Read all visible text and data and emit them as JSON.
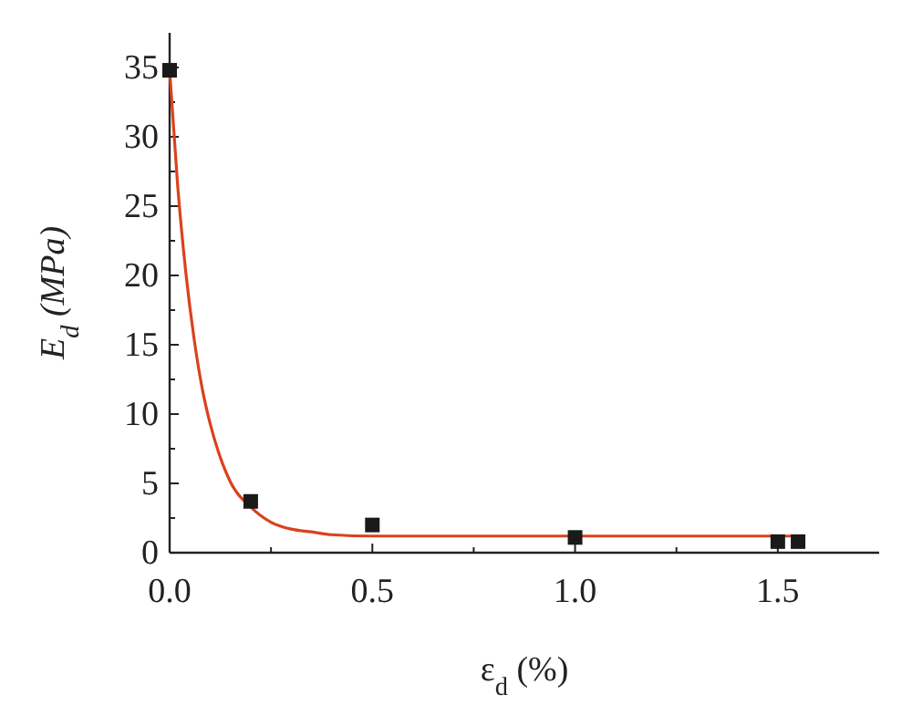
{
  "chart_data": {
    "type": "scatter",
    "xlabel": "ε$_{d}$ (%)",
    "ylabel": "E$_{d}$ (MPa)",
    "xlim": [
      0,
      1.75
    ],
    "xticks": [
      {
        "value": 0,
        "label": "0.0"
      },
      {
        "value": 0.25,
        "label": null
      },
      {
        "value": 0.5,
        "label": "0.5"
      },
      {
        "value": 0.75,
        "label": null
      },
      {
        "value": 1,
        "label": "1.0"
      },
      {
        "value": 1.25,
        "label": null
      },
      {
        "value": 1.5,
        "label": "1.5"
      }
    ],
    "ylim": [
      0,
      37.5
    ],
    "yticks": [
      0,
      {
        "value": 2.5,
        "label": null
      },
      5,
      {
        "value": 7.5,
        "label": null
      },
      10,
      {
        "value": 12.5,
        "label": null
      },
      15,
      {
        "value": 17.5,
        "label": null
      },
      20,
      {
        "value": 22.5,
        "label": null
      },
      25,
      {
        "value": 27.5,
        "label": null
      },
      30,
      {
        "value": 32.5,
        "label": null
      },
      35
    ],
    "marker": "square",
    "grid": false,
    "series": [
      {
        "type": "line",
        "marker": "none",
        "color": "#d9421c",
        "x": [
          0,
          0.02,
          0.04,
          0.06,
          0.08,
          0.1,
          0.12,
          0.15,
          0.2,
          0.25,
          0.3,
          0.35,
          0.4,
          0.5,
          0.7,
          1.0,
          1.3,
          1.55
        ],
        "values": [
          34.8,
          26.4,
          20.2,
          15.5,
          11.9,
          9.3,
          7.3,
          5.1,
          3.3,
          2.2,
          1.7,
          1.5,
          1.3,
          1.2,
          1.2,
          1.2,
          1.2,
          1.2
        ]
      },
      {
        "color": "#1a1a1a",
        "x": [
          0,
          0.2,
          0.5,
          1.0,
          1.5,
          1.55
        ],
        "values": [
          34.8,
          3.7,
          2.0,
          1.1,
          0.8,
          0.8
        ]
      }
    ]
  }
}
